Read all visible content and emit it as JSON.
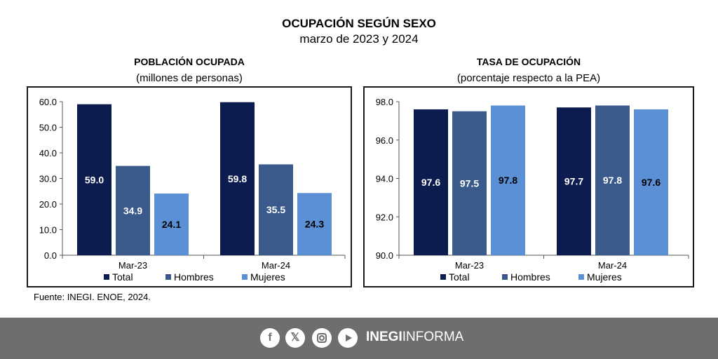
{
  "title": "OCUPACIÓN SEGÚN SEXO",
  "subtitle": "marzo de 2023 y 2024",
  "source": "Fuente: INEGI. ENOE, 2024.",
  "brand": {
    "bold": "INEGI",
    "light": "INFORMA"
  },
  "colors": {
    "total": "#0d1c4f",
    "hombres": "#3a5a8c",
    "mujeres": "#5b8fd6",
    "footer": "#6e6e6e"
  },
  "footer_icons": [
    "facebook-icon",
    "x-icon",
    "instagram-icon",
    "youtube-icon"
  ],
  "chart_data": [
    {
      "type": "bar",
      "title": "POBLACIÓN OCUPADA",
      "subtitle": "(millones de personas)",
      "categories": [
        "Mar-23",
        "Mar-24"
      ],
      "series": [
        {
          "name": "Total",
          "values": [
            59.0,
            59.8
          ]
        },
        {
          "name": "Hombres",
          "values": [
            34.9,
            35.5
          ]
        },
        {
          "name": "Mujeres",
          "values": [
            24.1,
            24.3
          ]
        }
      ],
      "ylim": [
        0,
        60
      ],
      "yticks": [
        "0.0",
        "10.0",
        "20.0",
        "30.0",
        "40.0",
        "50.0",
        "60.0"
      ],
      "data_labels": [
        [
          "59.0",
          "59.8"
        ],
        [
          "34.9",
          "35.5"
        ],
        [
          "24.1",
          "24.3"
        ]
      ],
      "legend": "bottom",
      "grid": false
    },
    {
      "type": "bar",
      "title": "TASA DE OCUPACIÓN",
      "subtitle": "(porcentaje respecto a la PEA)",
      "categories": [
        "Mar-23",
        "Mar-24"
      ],
      "series": [
        {
          "name": "Total",
          "values": [
            97.6,
            97.7
          ]
        },
        {
          "name": "Hombres",
          "values": [
            97.5,
            97.8
          ]
        },
        {
          "name": "Mujeres",
          "values": [
            97.8,
            97.6
          ]
        }
      ],
      "ylim": [
        90,
        98
      ],
      "yticks": [
        "90.0",
        "92.0",
        "94.0",
        "96.0",
        "98.0"
      ],
      "data_labels": [
        [
          "97.6",
          "97.7"
        ],
        [
          "97.5",
          "97.8"
        ],
        [
          "97.8",
          "97.6"
        ]
      ],
      "legend": "bottom",
      "grid": false
    }
  ]
}
